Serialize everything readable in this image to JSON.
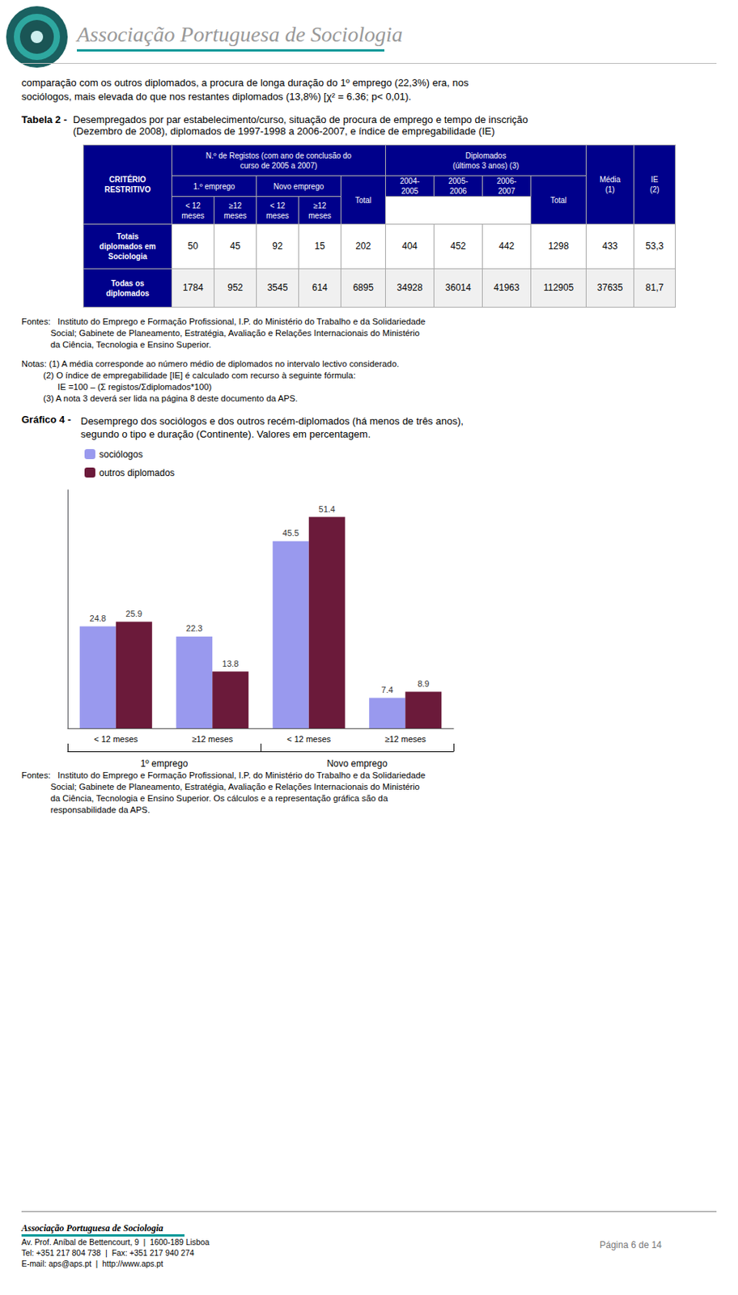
{
  "page": {
    "header_title": "Associação Portuguesa de Sociologia",
    "intro": [
      "comparação com os outros diplomados, a procura de longa duração do 1º emprego (22,3%) era, nos",
      "sociólogos, mais elevada do que nos restantes diplomados (13,8%) [χ² = 6.36; p< 0,01)."
    ],
    "table": {
      "label": "Tabela 2 -",
      "title": [
        "Desempregados por par estabelecimento/curso, situação de procura de emprego e tempo de inscrição",
        "(Dezembro de 2008), diplomados de 1997-1998 a 2006-2007, e índice de empregabilidade (IE)"
      ],
      "header_rows": [
        [
          "CRITÉRIO\nRESTRITIVO",
          "N.º de Registos (com ano de conclusão do\ncurso de 2005 a 2007)",
          "Diplomados\n(últimos 3 anos) (3)",
          "Média\n(1)",
          "IE\n(2)"
        ],
        [
          "1.º emprego",
          "Novo emprego",
          "Total",
          "2004-\n2005",
          "2005-\n2006",
          "2006-\n2007",
          "Total"
        ],
        [
          "< 12\nmeses",
          "≥12\nmeses",
          "< 12\nmeses",
          "≥12\nmeses"
        ]
      ],
      "rows": [
        {
          "label": "Totais\ndiplomados em\nSociologia",
          "values": [
            "50",
            "45",
            "92",
            "15",
            "202",
            "404",
            "452",
            "442",
            "1298",
            "433",
            "53,3"
          ]
        },
        {
          "label": "Todas os\ndiplomados",
          "values": [
            "1784",
            "952",
            "3545",
            "614",
            "6895",
            "34928",
            "36014",
            "41963",
            "112905",
            "37635",
            "81,7"
          ]
        }
      ]
    },
    "sources": [
      "Fontes:   Instituto do Emprego e Formação Profissional, I.P. do Ministério do Trabalho e da Solidariedade",
      "            Social; Gabinete de Planeamento, Estratégia, Avaliação e Relações Internacionais do Ministério",
      "            da Ciência, Tecnologia e Ensino Superior."
    ],
    "notes": [
      "Notas: (1) A média corresponde ao número médio de diplomados no intervalo lectivo considerado.",
      "         (2) O índice de empregabilidade [IE] é calculado com recurso à seguinte fórmula:",
      "               IE =100 – (Σ registos/Σdiplomados*100)",
      "         (3) A nota 3 deverá ser lida na página 8 deste documento da APS."
    ],
    "chart_sources": [
      "Fontes:   Instituto do Emprego e Formação Profissional, I.P. do Ministério do Trabalho e da Solidariedade",
      "            Social; Gabinete de Planeamento, Estratégia, Avaliação e Relações Internacionais do Ministério",
      "            da Ciência, Tecnologia e Ensino Superior. Os cálculos e a representação gráfica são da",
      "            responsabilidade da APS."
    ],
    "footer": {
      "org": "Associação Portuguesa de Sociologia",
      "lines": [
        "Av. Prof. Aníbal de Bettencourt, 9  |  1600-189 Lisboa",
        "Tel: +351 217 804 738  |  Fax: +351 217 940 274",
        "E-mail: aps@aps.pt  |  http://www.aps.pt"
      ],
      "page": "Página 6 de 14"
    }
  },
  "chart_data": {
    "type": "bar",
    "title": "Gráfico 4 -",
    "subtitle": "Desemprego dos sociólogos e dos outros recém-diplomados (há menos de três anos),\nsegundo o tipo e duração (Continente). Valores em percentagem.",
    "categories": [
      "< 12 meses",
      "≥12 meses",
      "< 12 meses",
      "≥12 meses"
    ],
    "series": [
      {
        "name": "sociólogos",
        "color": "#9999ee",
        "values": [
          24.8,
          22.3,
          45.5,
          7.4
        ]
      },
      {
        "name": "outros diplomados",
        "color": "#6B1A3A",
        "values": [
          25.9,
          13.8,
          51.4,
          8.9
        ]
      }
    ],
    "annotations": [
      "1º emprego",
      "Novo emprego"
    ],
    "ylim": [
      0,
      58
    ],
    "data_labels": true,
    "tick_labels": "x",
    "grid": false,
    "legend": "upper left"
  }
}
